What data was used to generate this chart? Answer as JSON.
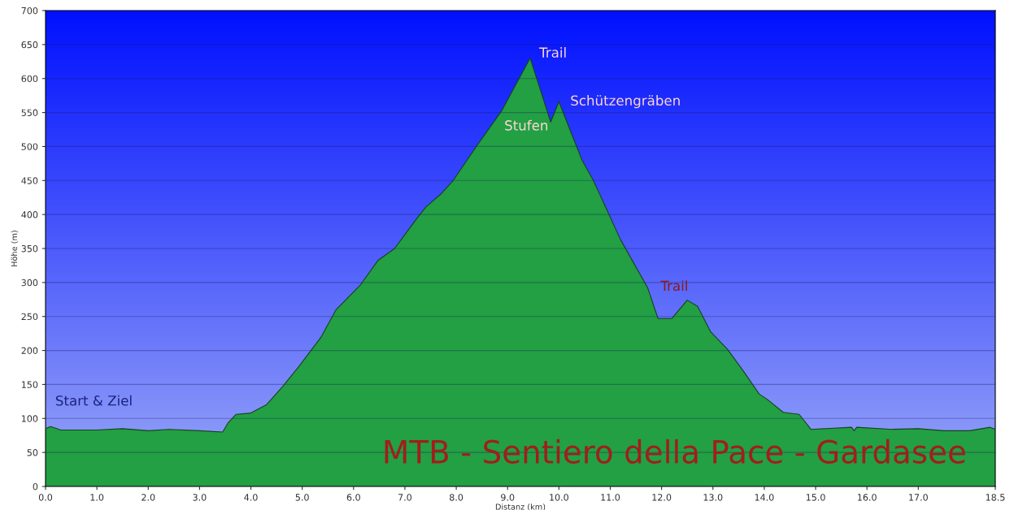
{
  "chart_data": {
    "type": "area",
    "title": "MTB - Sentiero della Pace - Gardasee",
    "xlabel": "Distanz (km)",
    "ylabel": "Höhe (m)",
    "x": [
      0,
      0.1,
      0.3,
      1.0,
      1.5,
      2.0,
      2.4,
      3.0,
      3.45,
      3.56,
      3.71,
      4.0,
      4.3,
      4.62,
      4.93,
      5.37,
      5.66,
      6.13,
      6.47,
      6.8,
      7.24,
      7.41,
      7.7,
      7.94,
      8.41,
      8.88,
      9.44,
      9.84,
      10.0,
      10.45,
      10.65,
      10.8,
      11.2,
      11.73,
      11.93,
      12.2,
      12.5,
      12.7,
      12.96,
      13.28,
      13.59,
      13.9,
      14.06,
      14.37,
      14.68,
      14.91,
      15.7,
      15.75,
      15.8,
      16.5,
      17.0,
      17.5,
      18.0,
      18.4,
      18.5
    ],
    "series": [
      {
        "color": "#22a043",
        "values": [
          85,
          88,
          83,
          83,
          85,
          82,
          84,
          82,
          80,
          94,
          106,
          108,
          120,
          147,
          176,
          220,
          260,
          296,
          332,
          350,
          395,
          411,
          430,
          450,
          502,
          552,
          630,
          536,
          566,
          480,
          453,
          429,
          363,
          292,
          247,
          247,
          274,
          265,
          227,
          202,
          170,
          136,
          128,
          109,
          106,
          84,
          87,
          82,
          87,
          84,
          85,
          82,
          82,
          87,
          84
        ]
      }
    ],
    "annotations": [
      {
        "text": "Trail",
        "x": 9.44,
        "y": 630
      },
      {
        "text": "Schützengräben",
        "x": 10.0,
        "y": 566
      },
      {
        "text": "Stufen",
        "x": 9.84,
        "y": 536
      },
      {
        "text": "Trail",
        "x": 12.2,
        "y": 247
      },
      {
        "text": "Start & Ziel",
        "x": 0.1,
        "y": 88
      }
    ],
    "xlim": [
      0,
      18.5
    ],
    "xticks": [
      {
        "value": 0,
        "label": "0.0"
      },
      {
        "value": 1,
        "label": "1.0"
      },
      {
        "value": 2,
        "label": "2.0"
      },
      {
        "value": 3,
        "label": "3.0"
      },
      {
        "value": 4,
        "label": "4.0"
      },
      {
        "value": 5,
        "label": "5.0"
      },
      {
        "value": 6,
        "label": "6.0"
      },
      {
        "value": 7,
        "label": "7.0"
      },
      {
        "value": 8,
        "label": "8.0"
      },
      {
        "value": 9,
        "label": "9.0"
      },
      {
        "value": 10,
        "label": "10.0"
      },
      {
        "value": 11,
        "label": "11.0"
      },
      {
        "value": 12,
        "label": "12.0"
      },
      {
        "value": 13,
        "label": "13.0"
      },
      {
        "value": 14,
        "label": "14.0"
      },
      {
        "value": 15,
        "label": "15.0"
      },
      {
        "value": 16,
        "label": "16.0"
      },
      {
        "value": 17,
        "label": "17.0"
      },
      18.5
    ],
    "ylim": [
      0,
      700
    ],
    "yticks": [
      0,
      50,
      100,
      150,
      200,
      250,
      300,
      350,
      400,
      450,
      500,
      550,
      600,
      650,
      700
    ],
    "grid": "y"
  }
}
